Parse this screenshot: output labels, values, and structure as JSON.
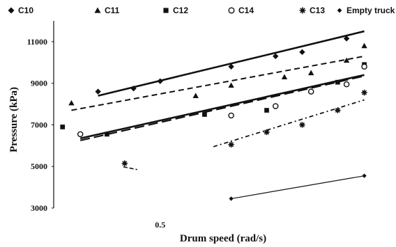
{
  "chart_data": {
    "type": "scatter",
    "xlabel": "Drum speed (rad/s)",
    "ylabel": "Pressure (kPa)",
    "ylim": [
      3000,
      12000
    ],
    "xlim": [
      0.38,
      0.75
    ],
    "yticks": [
      "11000",
      "9000",
      "7000",
      "5000",
      "3000"
    ],
    "ytick_values": [
      11000,
      9000,
      7000,
      5000,
      3000
    ],
    "xticks": [
      "0.5"
    ],
    "xtick_values": [
      0.5
    ],
    "grid": false,
    "legend_position": "top",
    "series": [
      {
        "name": "C10",
        "marker": "diamond",
        "color": "#111111",
        "x": [
          0.43,
          0.47,
          0.5,
          0.58,
          0.63,
          0.66,
          0.71
        ],
        "y": [
          8600,
          8750,
          9100,
          9800,
          10300,
          10500,
          11150
        ],
        "trend": {
          "x": [
            0.43,
            0.73
          ],
          "y": [
            8400,
            11500
          ],
          "style": "solid",
          "width": 2.6
        }
      },
      {
        "name": "C11",
        "marker": "triangle",
        "color": "#111111",
        "x": [
          0.4,
          0.54,
          0.58,
          0.64,
          0.67,
          0.71,
          0.73
        ],
        "y": [
          8050,
          8400,
          8900,
          9300,
          9500,
          10100,
          10800
        ],
        "trend": {
          "x": [
            0.4,
            0.73
          ],
          "y": [
            7700,
            10300
          ],
          "style": "dashed",
          "width": 2
        }
      },
      {
        "name": "C12",
        "marker": "square",
        "color": "#111111",
        "x": [
          0.39,
          0.44,
          0.55,
          0.62,
          0.7,
          0.73
        ],
        "y": [
          6900,
          6550,
          7500,
          7700,
          9050,
          9900
        ],
        "trend": {
          "x": [
            0.41,
            0.73
          ],
          "y": [
            6250,
            9350
          ],
          "style": "longdash",
          "width": 2.2
        }
      },
      {
        "name": "C14",
        "marker": "circle",
        "color": "#111111",
        "x": [
          0.41,
          0.58,
          0.63,
          0.67,
          0.71,
          0.73
        ],
        "y": [
          6550,
          7450,
          7900,
          8600,
          8950,
          9800
        ],
        "trend": {
          "x": [
            0.41,
            0.73
          ],
          "y": [
            6350,
            9400
          ],
          "style": "solid",
          "width": 2.6
        }
      },
      {
        "name": "C13",
        "marker": "star",
        "color": "#111111",
        "x": [
          0.46,
          0.58,
          0.62,
          0.66,
          0.7,
          0.73
        ],
        "y": [
          5150,
          6050,
          6650,
          7000,
          7700,
          8550
        ],
        "trend": {
          "x": [
            0.56,
            0.73
          ],
          "y": [
            5950,
            8200
          ],
          "style": "dashdot",
          "width": 1.8
        }
      },
      {
        "name": "Empty truck",
        "marker": "smalldiamond",
        "color": "#111111",
        "x": [
          0.58,
          0.73
        ],
        "y": [
          3450,
          4550
        ],
        "trend": {
          "x": [
            0.58,
            0.73
          ],
          "y": [
            3450,
            4550
          ],
          "style": "solid",
          "width": 1.2
        }
      }
    ]
  }
}
